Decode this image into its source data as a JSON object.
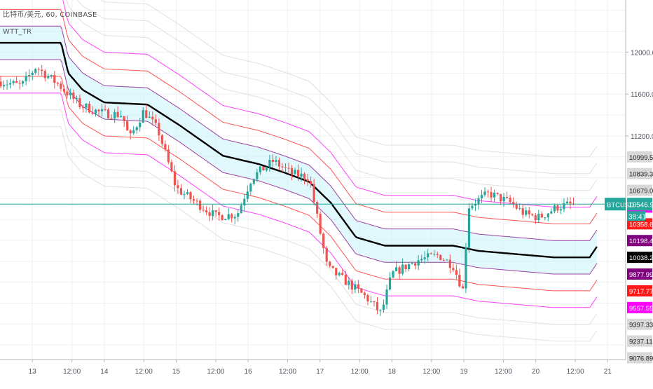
{
  "legend": {
    "title": "比特币/美元, 60, COINBASE",
    "indicator": "WTT_TR"
  },
  "chart_data": {
    "type": "candlestick",
    "symbol": "BTCUSD",
    "exchange": "COINBASE",
    "timeframe": "60",
    "last_price": "10546.91",
    "countdown": "38:41",
    "y_axis": {
      "range": [
        9060,
        12500
      ],
      "ticks": [
        "12000.00",
        "11600.00",
        "11200.00"
      ]
    },
    "x_axis": {
      "ticks": [
        {
          "t": 0.45,
          "label": "13"
        },
        {
          "t": 1.0,
          "label": "12:00"
        },
        {
          "t": 1.45,
          "label": "14"
        },
        {
          "t": 2.0,
          "label": "12:00"
        },
        {
          "t": 2.45,
          "label": "15"
        },
        {
          "t": 3.0,
          "label": "12:00"
        },
        {
          "t": 3.45,
          "label": "16"
        },
        {
          "t": 4.0,
          "label": "12:00"
        },
        {
          "t": 4.45,
          "label": "17"
        },
        {
          "t": 5.0,
          "label": "12:00"
        },
        {
          "t": 5.45,
          "label": "18"
        },
        {
          "t": 6.0,
          "label": "12:00"
        },
        {
          "t": 6.45,
          "label": "19"
        },
        {
          "t": 7.0,
          "label": "12:00"
        },
        {
          "t": 7.45,
          "label": "20"
        },
        {
          "t": 8.0,
          "label": "12:00"
        },
        {
          "t": 8.45,
          "label": "21"
        }
      ]
    },
    "level_badges": [
      {
        "label": "10999.52",
        "value": 10999.52,
        "bg": "#d8d8d8",
        "fg": "#222222"
      },
      {
        "label": "10839.30",
        "value": 10839.3,
        "bg": "#d8d8d8",
        "fg": "#222222"
      },
      {
        "label": "10679.08",
        "value": 10679.08,
        "bg": "#d8d8d8",
        "fg": "#222222"
      },
      {
        "label": "10518.86",
        "value": 10518.86,
        "bg": "#ff00ff",
        "fg": "#ffffff"
      },
      {
        "label": "10358.64",
        "value": 10358.64,
        "bg": "#ff1a1a",
        "fg": "#ffffff"
      },
      {
        "label": "10198.42",
        "value": 10198.42,
        "bg": "#800080",
        "fg": "#ffffff"
      },
      {
        "label": "10038.21",
        "value": 10038.21,
        "bg": "#000000",
        "fg": "#ffffff"
      },
      {
        "label": "9877.99",
        "value": 9877.99,
        "bg": "#800080",
        "fg": "#ffffff"
      },
      {
        "label": "9717.77",
        "value": 9717.77,
        "bg": "#ff1a1a",
        "fg": "#ffffff"
      },
      {
        "label": "9557.55",
        "value": 9557.55,
        "bg": "#ff00ff",
        "fg": "#ffffff"
      },
      {
        "label": "9397.33",
        "value": 9397.33,
        "bg": "#d8d8d8",
        "fg": "#222222"
      },
      {
        "label": "9237.11",
        "value": 9237.11,
        "bg": "#d8d8d8",
        "fg": "#222222"
      },
      {
        "label": "9076.89",
        "value": 9076.89,
        "bg": "#d8d8d8",
        "fg": "#222222"
      }
    ],
    "band_offsets": [
      -5,
      -4,
      -3,
      -2,
      -1,
      0,
      1,
      2,
      3,
      4,
      5,
      6
    ],
    "band_colors": {
      "-5": "#d8d8d8",
      "-4": "#d8d8d8",
      "-3": "#ff00ff",
      "-2": "#ff1a1a",
      "-1": "#800080",
      "0": "#000000",
      "1": "#800080",
      "2": "#ff1a1a",
      "3": "#ff00ff",
      "4": "#d8d8d8",
      "5": "#d8d8d8",
      "6": "#d8d8d8"
    },
    "band_step": 160.22,
    "center_line": [
      {
        "t": 0.0,
        "v": 12090
      },
      {
        "t": 0.85,
        "v": 12090
      },
      {
        "t": 0.95,
        "v": 11800
      },
      {
        "t": 1.15,
        "v": 11640
      },
      {
        "t": 1.45,
        "v": 11520
      },
      {
        "t": 2.05,
        "v": 11500
      },
      {
        "t": 2.5,
        "v": 11300
      },
      {
        "t": 3.1,
        "v": 11010
      },
      {
        "t": 3.6,
        "v": 10930
      },
      {
        "t": 3.95,
        "v": 10850
      },
      {
        "t": 4.3,
        "v": 10760
      },
      {
        "t": 4.6,
        "v": 10560
      },
      {
        "t": 4.95,
        "v": 10230
      },
      {
        "t": 5.35,
        "v": 10150
      },
      {
        "t": 6.3,
        "v": 10150
      },
      {
        "t": 6.65,
        "v": 10100
      },
      {
        "t": 7.7,
        "v": 10038
      },
      {
        "t": 8.2,
        "v": 10038
      },
      {
        "t": 8.3,
        "v": 10140
      }
    ],
    "price_path": [
      {
        "t": 0.0,
        "v": 11720
      },
      {
        "t": 0.3,
        "v": 11680
      },
      {
        "t": 0.5,
        "v": 11860
      },
      {
        "t": 0.8,
        "v": 11700
      },
      {
        "t": 1.1,
        "v": 11500
      },
      {
        "t": 1.4,
        "v": 11420
      },
      {
        "t": 1.7,
        "v": 11400
      },
      {
        "t": 1.8,
        "v": 11170
      },
      {
        "t": 2.0,
        "v": 11440
      },
      {
        "t": 2.2,
        "v": 11250
      },
      {
        "t": 2.45,
        "v": 10700
      },
      {
        "t": 2.75,
        "v": 10550
      },
      {
        "t": 3.0,
        "v": 10430
      },
      {
        "t": 3.3,
        "v": 10450
      },
      {
        "t": 3.5,
        "v": 10800
      },
      {
        "t": 3.8,
        "v": 10960
      },
      {
        "t": 4.05,
        "v": 10840
      },
      {
        "t": 4.3,
        "v": 10800
      },
      {
        "t": 4.55,
        "v": 9940
      },
      {
        "t": 4.9,
        "v": 9760
      },
      {
        "t": 5.1,
        "v": 9650
      },
      {
        "t": 5.3,
        "v": 9500
      },
      {
        "t": 5.45,
        "v": 9880
      },
      {
        "t": 5.8,
        "v": 10010
      },
      {
        "t": 6.1,
        "v": 10060
      },
      {
        "t": 6.3,
        "v": 9960
      },
      {
        "t": 6.45,
        "v": 9700
      },
      {
        "t": 6.5,
        "v": 10520
      },
      {
        "t": 6.8,
        "v": 10650
      },
      {
        "t": 7.1,
        "v": 10560
      },
      {
        "t": 7.3,
        "v": 10450
      },
      {
        "t": 7.5,
        "v": 10420
      },
      {
        "t": 7.75,
        "v": 10520
      },
      {
        "t": 7.9,
        "v": 10540
      },
      {
        "t": 8.0,
        "v": 10546.91
      }
    ]
  }
}
